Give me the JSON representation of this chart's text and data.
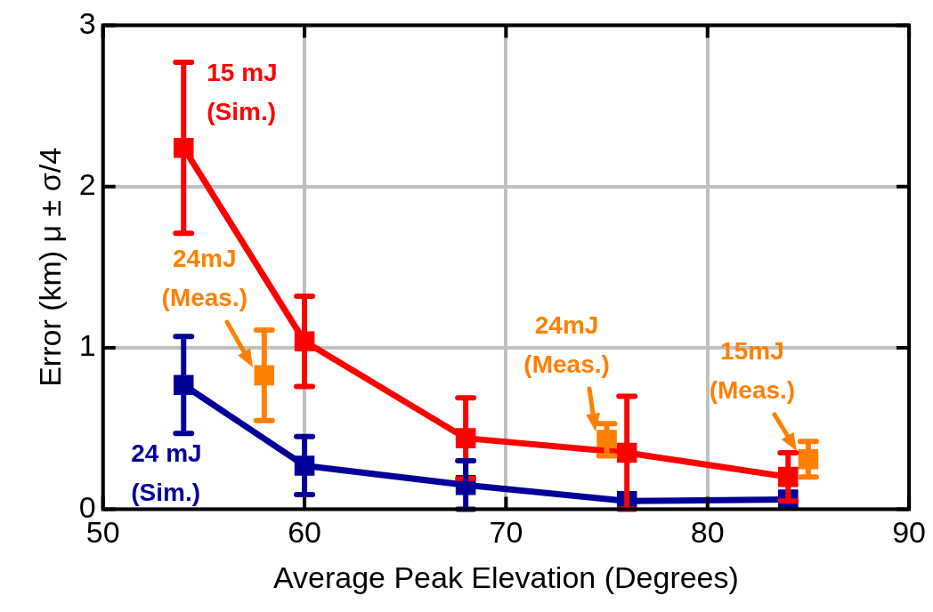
{
  "chart_data": {
    "type": "line",
    "xlabel": "Average Peak Elevation (Degrees)",
    "ylabel": "Error (km) μ ± σ/4",
    "xlim": [
      50,
      90
    ],
    "xticks": [
      50,
      60,
      70,
      80,
      90
    ],
    "ylim": [
      0,
      3
    ],
    "yticks": [
      0,
      1,
      2,
      3
    ],
    "grid": true,
    "legend": false,
    "marker": "square",
    "line_style": "solid",
    "series": [
      {
        "name": "15 mJ (Sim.)",
        "type": "line",
        "color": "#ff0000",
        "x": [
          54,
          60,
          68,
          76,
          84
        ],
        "values": [
          2.24,
          1.04,
          0.44,
          0.35,
          0.2
        ],
        "errors": [
          0.53,
          0.28,
          0.25,
          0.35,
          0.15
        ]
      },
      {
        "name": "24 mJ (Sim.)",
        "type": "line",
        "color": "#000099",
        "x": [
          54,
          60,
          68,
          76,
          84
        ],
        "values": [
          0.77,
          0.27,
          0.15,
          0.05,
          0.06
        ],
        "errors": [
          0.3,
          0.18,
          0.15,
          null,
          null
        ]
      },
      {
        "type": "scatter",
        "color": "#ff8000",
        "x": [
          58,
          75,
          85
        ],
        "values": [
          0.83,
          0.43,
          0.31
        ],
        "errors": [
          0.28,
          0.1,
          0.11
        ]
      }
    ],
    "annotations": [
      {
        "text": "24mJ (Meas.)",
        "x": 58,
        "y": 0.83
      },
      {
        "text": "24mJ (Meas.)",
        "x": 75,
        "y": 0.43
      },
      {
        "text": "15mJ (Meas.)",
        "x": 85,
        "y": 0.31
      }
    ]
  }
}
